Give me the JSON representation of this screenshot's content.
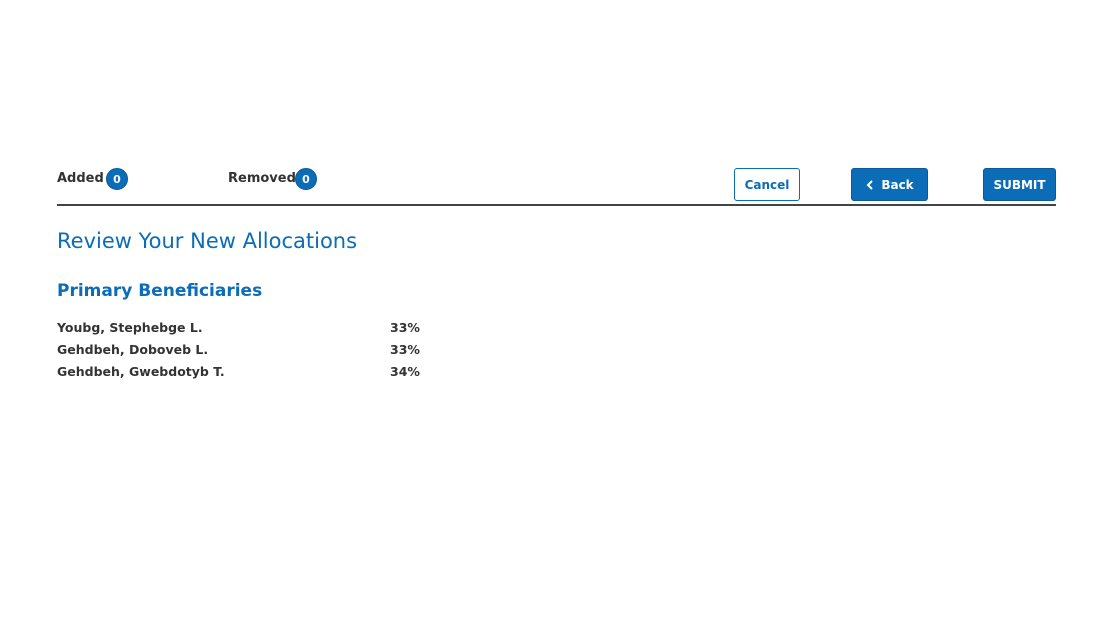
{
  "toolbar": {
    "added": {
      "label": "Added",
      "count": 0
    },
    "removed": {
      "label": "Removed",
      "count": 0
    },
    "buttons": {
      "cancel": "Cancel",
      "back": "Back",
      "submit": "SUBMIT"
    }
  },
  "heading": "Review Your New Allocations",
  "section": {
    "title": "Primary Beneficiaries",
    "rows": [
      {
        "name": "Youbg, Stephebge L.",
        "allocation": "33%"
      },
      {
        "name": "Gehdbeh, Doboveb L.",
        "allocation": "33%"
      },
      {
        "name": "Gehdbeh, Gwebdotyb T.",
        "allocation": "34%"
      }
    ]
  }
}
